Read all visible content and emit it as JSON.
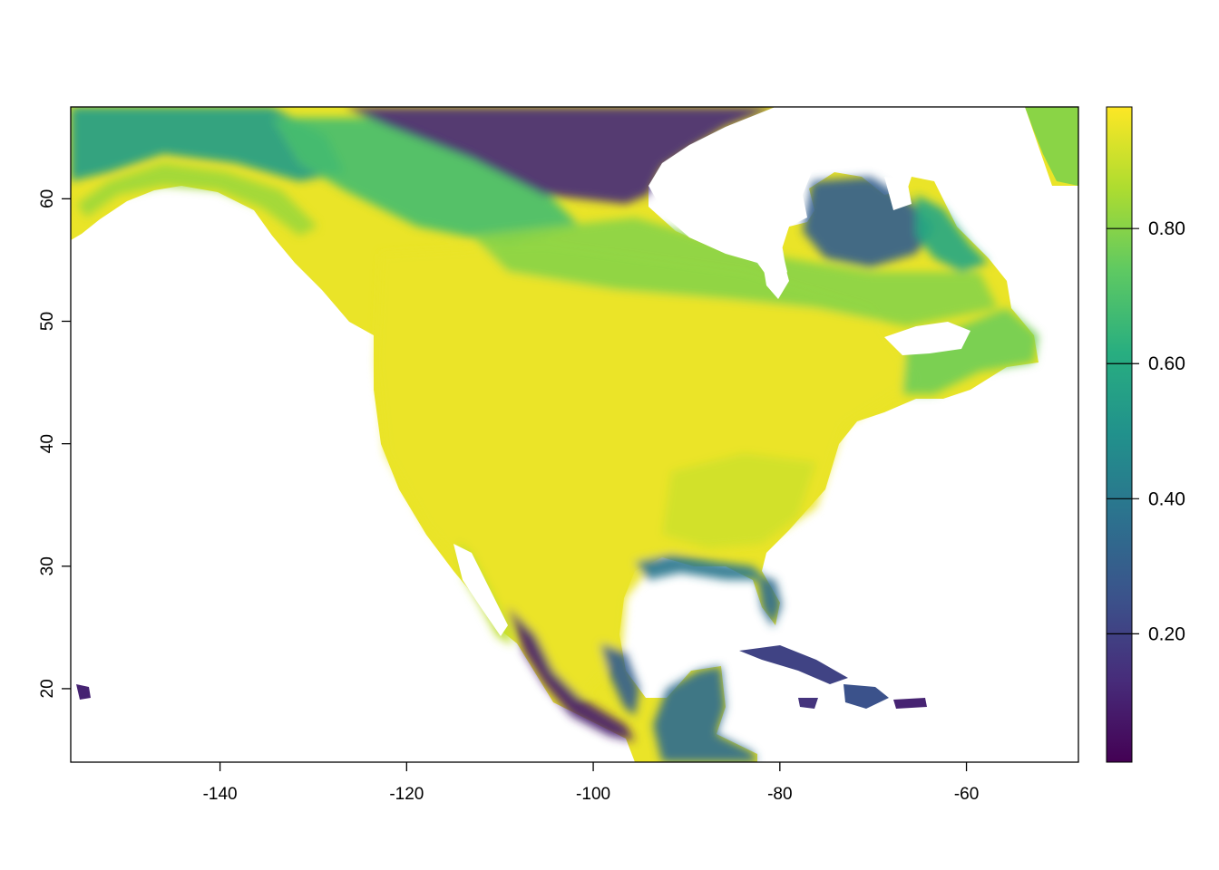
{
  "chart_data": {
    "type": "heatmap",
    "title": "",
    "xlabel": "",
    "ylabel": "",
    "xlim": [
      -156,
      -48
    ],
    "ylim": [
      14,
      67.5
    ],
    "x_ticks": [
      {
        "value": -140,
        "label": "-140"
      },
      {
        "value": -120,
        "label": "-120"
      },
      {
        "value": -100,
        "label": "-100"
      },
      {
        "value": -80,
        "label": "-80"
      },
      {
        "value": -60,
        "label": "-60"
      }
    ],
    "y_ticks": [
      {
        "value": 20,
        "label": "20"
      },
      {
        "value": 30,
        "label": "30"
      },
      {
        "value": 40,
        "label": "40"
      },
      {
        "value": 50,
        "label": "50"
      },
      {
        "value": 60,
        "label": "60"
      }
    ],
    "colorbar": {
      "palette": "viridis",
      "range": [
        0.01,
        0.98
      ],
      "stops": [
        "#440154",
        "#472c7a",
        "#3b528b",
        "#2c728e",
        "#21918c",
        "#28ae80",
        "#5ec962",
        "#addc30",
        "#fde725"
      ],
      "ticks": [
        {
          "value": 0.2,
          "label": "0.20"
        },
        {
          "value": 0.4,
          "label": "0.40"
        },
        {
          "value": 0.6,
          "label": "0.60"
        },
        {
          "value": 0.8,
          "label": "0.80"
        }
      ]
    },
    "regions": [
      {
        "name": "interior-north-america",
        "value": 0.97
      },
      {
        "name": "alaska-coast",
        "value": 0.85
      },
      {
        "name": "alaska-interior",
        "value": 0.55
      },
      {
        "name": "yukon-nwt-boreal",
        "value": 0.7
      },
      {
        "name": "northern-canada-mainland",
        "value": 0.12
      },
      {
        "name": "boreal-canada-belt",
        "value": 0.82
      },
      {
        "name": "quebec-interior",
        "value": 0.3
      },
      {
        "name": "labrador",
        "value": 0.6
      },
      {
        "name": "maritimes-newfoundland",
        "value": 0.78
      },
      {
        "name": "southeast-us",
        "value": 0.93
      },
      {
        "name": "gulf-coast",
        "value": 0.4
      },
      {
        "name": "florida-tip",
        "value": 0.35
      },
      {
        "name": "baja-california",
        "value": 0.9
      },
      {
        "name": "mexico-pacific-coast",
        "value": 0.08
      },
      {
        "name": "mexico-gulf-coast",
        "value": 0.3
      },
      {
        "name": "central-america",
        "value": 0.35
      },
      {
        "name": "cuba",
        "value": 0.2
      },
      {
        "name": "hispaniola",
        "value": 0.25
      },
      {
        "name": "jamaica",
        "value": 0.15
      },
      {
        "name": "hawaii",
        "value": 0.1
      },
      {
        "name": "greenland-tip",
        "value": 0.82
      }
    ]
  }
}
